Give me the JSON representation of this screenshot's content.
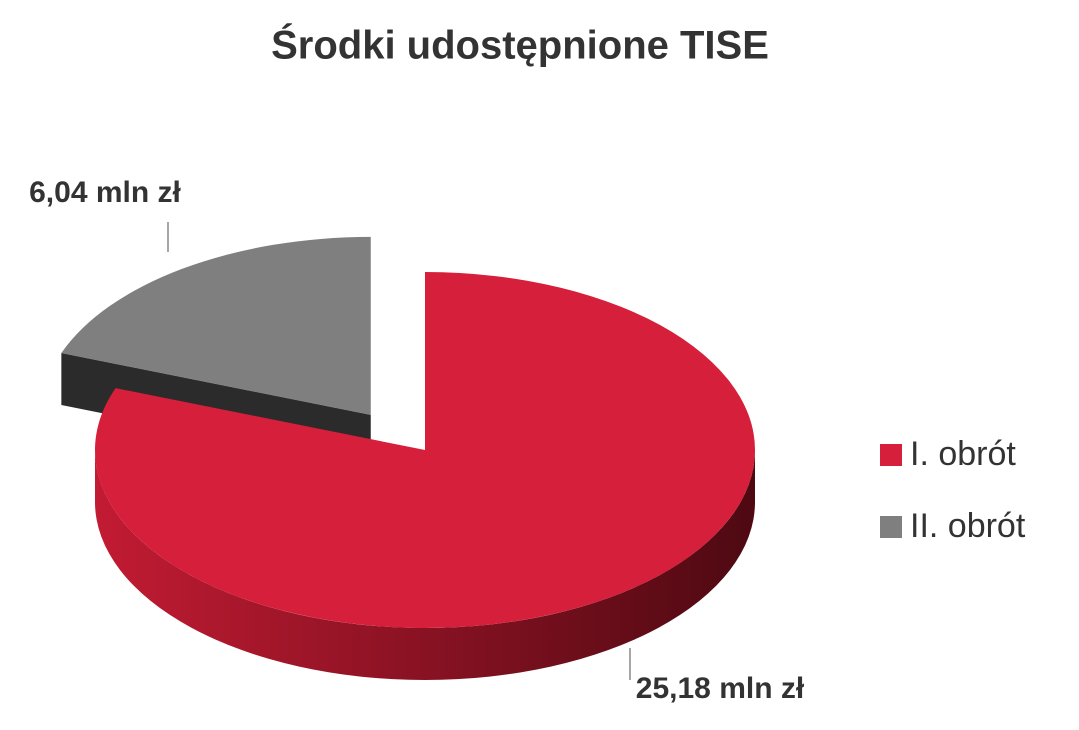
{
  "chart_data": {
    "type": "pie3d",
    "title": "Środki udostępnione TISE",
    "categories": [
      "I. obrót",
      "II. obrót"
    ],
    "values": [
      25.18,
      6.04
    ],
    "value_labels": [
      "25,18 mln zł",
      "6,04 mln zł"
    ],
    "colors": [
      "#d61f3a",
      "#7f7f7f"
    ],
    "legend": "right"
  }
}
